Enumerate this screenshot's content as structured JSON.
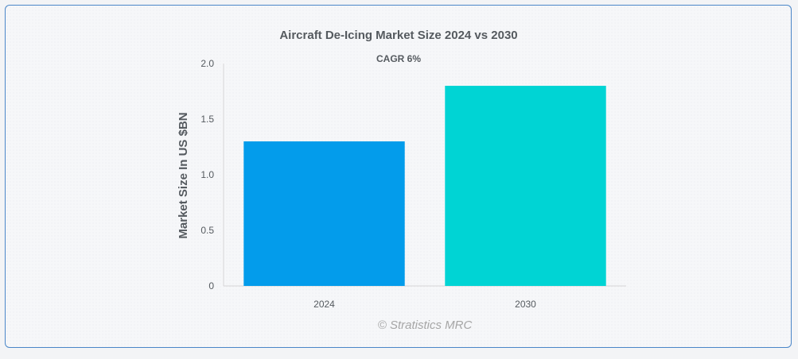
{
  "chart_data": {
    "type": "bar",
    "title": "Aircraft De-Icing Market Size 2024 vs 2030",
    "subtitle": "CAGR 6%",
    "xlabel": "",
    "ylabel": "Market Size In US $BN",
    "categories": [
      "2024",
      "2030"
    ],
    "values": [
      1.3,
      1.8
    ],
    "colors": [
      "#039ceb",
      "#00d4d4"
    ],
    "ylim": [
      0,
      2.0
    ],
    "yticks": [
      "0",
      "0.5",
      "1.0",
      "1.5",
      "2.0"
    ],
    "grid": false,
    "legend": "none"
  },
  "watermark": "© Stratistics MRC"
}
